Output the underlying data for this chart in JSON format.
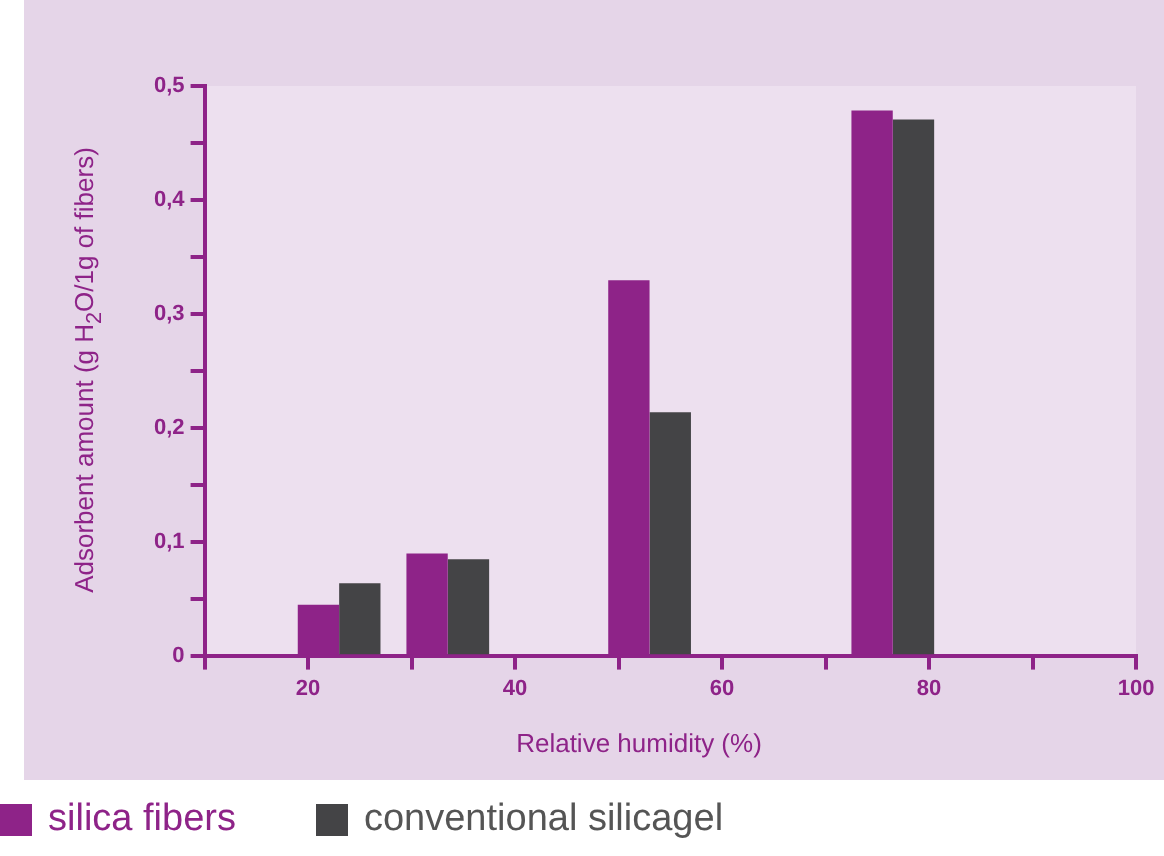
{
  "chart_data": {
    "type": "bar",
    "xlabel": "Relative humidity (%)",
    "ylabel": "Adsorbent amount (g H$_{2}$O/1g of fibers)",
    "series": [
      {
        "name": "silica fibers",
        "color": "#8e2388",
        "x": [
          21,
          31.5,
          51,
          74.5
        ],
        "values": [
          0.044,
          0.089,
          0.329,
          0.478
        ]
      },
      {
        "name": "conventional silicagel",
        "color": "#444446",
        "x": [
          25,
          35.5,
          55,
          78.5
        ],
        "values": [
          0.063,
          0.084,
          0.213,
          0.47
        ]
      }
    ],
    "xlim": [
      10,
      100
    ],
    "xticks": [
      {
        "value": 10,
        "label": null
      },
      20,
      {
        "value": 30,
        "label": null
      },
      40,
      {
        "value": 50,
        "label": null
      },
      60,
      {
        "value": 70,
        "label": null
      },
      80,
      {
        "value": 90,
        "label": null
      },
      100
    ],
    "ylim": [
      0,
      0.5
    ],
    "yticks": [
      0,
      {
        "value": 0.05,
        "label": null
      },
      {
        "value": 0.1,
        "label": "0,1"
      },
      {
        "value": 0.15,
        "label": null
      },
      {
        "value": 0.2,
        "label": "0,2"
      },
      {
        "value": 0.25,
        "label": null
      },
      {
        "value": 0.3,
        "label": "0,3"
      },
      {
        "value": 0.35,
        "label": null
      },
      {
        "value": 0.4,
        "label": "0,4"
      },
      {
        "value": 0.45,
        "label": null
      },
      {
        "value": 0.5,
        "label": "0,5"
      }
    ],
    "grid": false,
    "legend": "bottom"
  }
}
